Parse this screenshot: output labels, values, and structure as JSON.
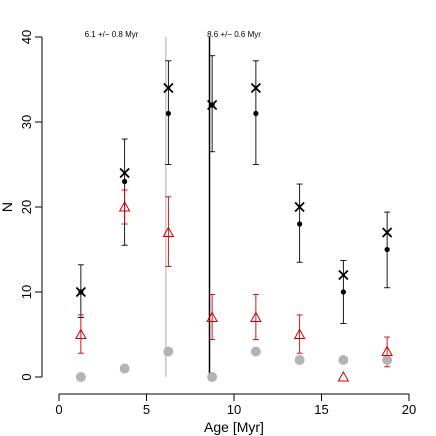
{
  "chart_data": {
    "type": "scatter",
    "xlabel": "Age [Myr]",
    "ylabel": "N",
    "xlim": [
      0,
      20
    ],
    "ylim": [
      0,
      40
    ],
    "xticks": [
      "0",
      "5",
      "10",
      "15",
      "20"
    ],
    "yticks": [
      "0",
      "10",
      "20",
      "30",
      "40"
    ],
    "annotations": [
      {
        "text": "6.1 +/− 0.8 Myr",
        "x": 3.0,
        "y": 40
      },
      {
        "text": "8.6 +/− 0.6 Myr",
        "x": 10.0,
        "y": 40
      }
    ],
    "vlines": [
      {
        "x": 6.1,
        "color": "#c8c8c8",
        "width": 1.5
      },
      {
        "x": 8.6,
        "color": "#000000",
        "width": 1.5
      }
    ],
    "series": [
      {
        "marker": "cross",
        "color": "#000000",
        "x": [
          1.25,
          3.75,
          6.25,
          8.75,
          11.25,
          13.75,
          16.25,
          18.75
        ],
        "y": [
          10,
          24,
          34,
          32,
          34,
          20,
          12,
          17
        ]
      },
      {
        "marker": "dot",
        "color": "#000000",
        "x": [
          1.25,
          3.75,
          6.25,
          8.75,
          11.25,
          13.75,
          16.25,
          18.75
        ],
        "y": [
          10,
          23,
          31,
          32,
          31,
          18,
          10,
          15
        ],
        "err_low": [
          7,
          15.5,
          25,
          26.5,
          25,
          13.5,
          6.3,
          10.5
        ],
        "err_high": [
          13.2,
          28,
          37.2,
          37.8,
          37.2,
          22.7,
          13.7,
          19.4
        ]
      },
      {
        "marker": "triangle",
        "color": "#cc0000",
        "x": [
          1.25,
          3.75,
          6.25,
          8.75,
          11.25,
          13.75,
          16.25,
          18.75
        ],
        "y": [
          5,
          20,
          17,
          7,
          7,
          5,
          0,
          3
        ],
        "err_low": [
          2.8,
          18,
          13,
          4.4,
          4.4,
          2.8,
          null,
          1.2
        ],
        "err_high": [
          7.3,
          22,
          21.2,
          9.7,
          9.7,
          7.3,
          null,
          4.7
        ]
      },
      {
        "marker": "grey-dot",
        "color": "#b4b4b4",
        "x": [
          1.25,
          3.75,
          6.25,
          8.75,
          11.25,
          13.75,
          16.25,
          18.75
        ],
        "y": [
          0,
          1,
          3,
          0,
          3,
          2,
          2,
          2
        ]
      }
    ]
  }
}
